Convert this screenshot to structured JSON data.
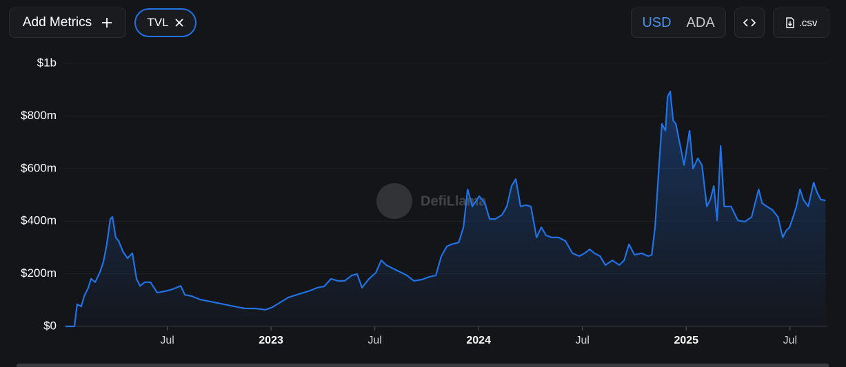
{
  "toolbar": {
    "add_metrics": "Add Metrics",
    "metric": "TVL",
    "currencies": [
      "USD",
      "ADA"
    ],
    "csv": ".csv"
  },
  "watermark": "DefiLlama",
  "chart_data": {
    "type": "area",
    "color": "#2172e5",
    "grid": true,
    "series": [
      {
        "name": "TVL",
        "color": "#2172e5",
        "x": [
          2022.01,
          2022.053,
          2022.066,
          2022.086,
          2022.1,
          2022.12,
          2022.133,
          2022.153,
          2022.176,
          2022.193,
          2022.209,
          2022.226,
          2022.236,
          2022.252,
          2022.266,
          2022.286,
          2022.309,
          2022.332,
          2022.352,
          2022.369,
          2022.392,
          2022.419,
          2022.452,
          2022.492,
          2022.525,
          2022.565,
          2022.585,
          2022.618,
          2022.658,
          2022.691,
          2022.741,
          2022.791,
          2022.84,
          2022.874,
          2022.924,
          2022.973,
          2023.007,
          2023.04,
          2023.083,
          2023.123,
          2023.156,
          2023.189,
          2023.223,
          2023.256,
          2023.289,
          2023.322,
          2023.355,
          2023.389,
          2023.415,
          2023.438,
          2023.472,
          2023.505,
          2023.531,
          2023.555,
          2023.588,
          2023.621,
          2023.654,
          2023.688,
          2023.727,
          2023.761,
          2023.794,
          2023.82,
          2023.847,
          2023.87,
          2023.904,
          2023.927,
          2023.947,
          2023.97,
          2024.003,
          2024.03,
          2024.053,
          2024.08,
          2024.113,
          2024.136,
          2024.159,
          2024.179,
          2024.202,
          2024.229,
          2024.252,
          2024.279,
          2024.302,
          2024.325,
          2024.352,
          2024.385,
          2024.418,
          2024.452,
          2024.485,
          2024.511,
          2024.535,
          2024.558,
          2024.585,
          2024.611,
          2024.644,
          2024.678,
          2024.701,
          2024.724,
          2024.751,
          2024.784,
          2024.817,
          2024.834,
          2024.85,
          2024.867,
          2024.883,
          2024.9,
          2024.91,
          2024.923,
          2024.937,
          2024.95,
          2024.967,
          2024.99,
          2025.016,
          2025.033,
          2025.056,
          2025.076,
          2025.099,
          2025.116,
          2025.133,
          2025.149,
          2025.166,
          2025.183,
          2025.199,
          2025.216,
          2025.249,
          2025.282,
          2025.315,
          2025.349,
          2025.365,
          2025.388,
          2025.415,
          2025.442,
          2025.465,
          2025.481,
          2025.498,
          2025.515,
          2025.531,
          2025.548,
          2025.564,
          2025.588,
          2025.614,
          2025.631,
          2025.648,
          2025.671
        ],
        "values": [
          0,
          0,
          84,
          76,
          115,
          147,
          181,
          168,
          207,
          246,
          312,
          408,
          416,
          338,
          325,
          285,
          259,
          278,
          181,
          154,
          168,
          168,
          128,
          134,
          141,
          154,
          120,
          115,
          102,
          97,
          89,
          81,
          73,
          68,
          68,
          63,
          73,
          89,
          110,
          120,
          128,
          136,
          147,
          152,
          181,
          173,
          173,
          194,
          199,
          147,
          181,
          204,
          251,
          233,
          220,
          207,
          194,
          173,
          178,
          188,
          194,
          267,
          304,
          312,
          319,
          377,
          521,
          456,
          495,
          469,
          408,
          408,
          424,
          456,
          534,
          560,
          456,
          461,
          456,
          338,
          377,
          346,
          338,
          338,
          325,
          278,
          267,
          278,
          293,
          278,
          267,
          233,
          251,
          233,
          251,
          312,
          272,
          278,
          267,
          272,
          377,
          586,
          770,
          744,
          874,
          893,
          783,
          770,
          704,
          613,
          744,
          600,
          639,
          613,
          456,
          482,
          534,
          403,
          686,
          456,
          456,
          456,
          403,
          398,
          416,
          521,
          469,
          456,
          443,
          416,
          338,
          364,
          377,
          416,
          456,
          521,
          482,
          456,
          547,
          508,
          482,
          479
        ]
      }
    ],
    "xlim": [
      2022,
      2025.68
    ],
    "xticks": [
      {
        "value": 2022.5,
        "label": "Jul"
      },
      2023,
      {
        "value": 2023.5,
        "label": "Jul"
      },
      2024,
      {
        "value": 2024.5,
        "label": "Jul"
      },
      2025,
      {
        "value": 2025.5,
        "label": "Jul"
      }
    ],
    "ylim": [
      0,
      1000
    ],
    "yticks": [
      {
        "value": 0,
        "label": "$0"
      },
      {
        "value": 200,
        "label": "$200m"
      },
      {
        "value": 400,
        "label": "$400m"
      },
      {
        "value": 600,
        "label": "$600m"
      },
      {
        "value": 800,
        "label": "$800m"
      },
      {
        "value": 1000,
        "label": "$1b"
      }
    ]
  }
}
